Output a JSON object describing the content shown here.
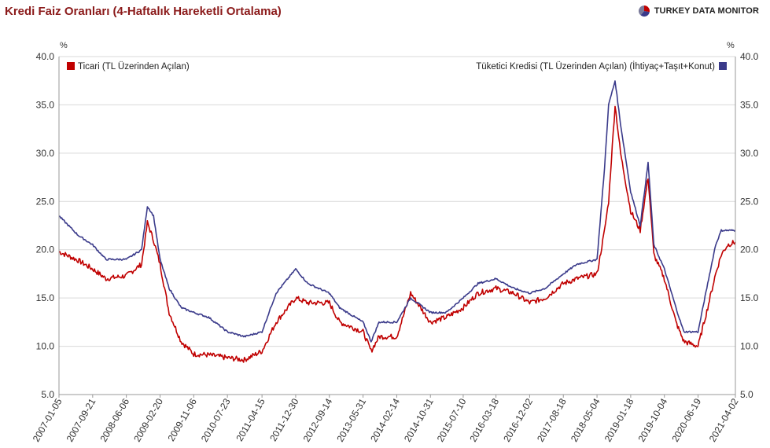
{
  "header": {
    "title": "Kredi Faiz Oranları (4-Haftalık Hareketli Ortalama)",
    "brand": "TURKEY DATA MONITOR"
  },
  "chart_data": {
    "type": "line",
    "title": "Kredi Faiz Oranları (4-Haftalık Hareketli Ortalama)",
    "y_unit_left": "%",
    "y_unit_right": "%",
    "ylim": [
      5,
      40
    ],
    "yticks": [
      "5.0",
      "10.0",
      "15.0",
      "20.0",
      "25.0",
      "30.0",
      "35.0",
      "40.0"
    ],
    "xticks": [
      "2007-01-05",
      "2007-09-21",
      "2008-06-06",
      "2009-02-20",
      "2009-11-06",
      "2010-07-23",
      "2011-04-15",
      "2011-12-30",
      "2012-09-14",
      "2013-05-31",
      "2014-02-14",
      "2014-10-31",
      "2015-07-10",
      "2016-03-18",
      "2016-12-02",
      "2017-08-18",
      "2018-05-04",
      "2019-01-18",
      "2019-10-04",
      "2020-06-19",
      "2021-04-02"
    ],
    "x_range": [
      "2007-01-05",
      "2021-04-02"
    ],
    "grid": "horizontal",
    "legend": [
      "top-left",
      "top-right"
    ],
    "series": [
      {
        "name": "Ticari (TL Üzerinden Açılan)",
        "color": "#c00000",
        "axis": "left",
        "x": [
          "2007-01-05",
          "2007-06-01",
          "2007-09-21",
          "2008-01-01",
          "2008-06-06",
          "2008-10-01",
          "2008-11-15",
          "2009-01-01",
          "2009-02-20",
          "2009-05-01",
          "2009-08-01",
          "2009-11-06",
          "2010-03-01",
          "2010-07-23",
          "2010-12-01",
          "2011-04-15",
          "2011-08-01",
          "2011-12-30",
          "2012-04-01",
          "2012-09-14",
          "2012-12-01",
          "2013-05-31",
          "2013-08-01",
          "2013-10-01",
          "2014-02-14",
          "2014-06-01",
          "2014-10-31",
          "2015-03-01",
          "2015-07-10",
          "2015-11-01",
          "2016-03-18",
          "2016-08-01",
          "2016-12-02",
          "2017-04-01",
          "2017-08-18",
          "2017-12-01",
          "2018-05-04",
          "2018-07-01",
          "2018-08-01",
          "2018-09-20",
          "2018-11-01",
          "2019-01-18",
          "2019-04-01",
          "2019-06-01",
          "2019-07-15",
          "2019-10-04",
          "2020-01-01",
          "2020-03-01",
          "2020-06-19",
          "2020-09-01",
          "2020-11-01",
          "2020-12-15",
          "2021-02-01",
          "2021-04-02"
        ],
        "y": [
          19.8,
          18.9,
          18.0,
          17.0,
          17.3,
          18.5,
          22.8,
          21.0,
          18.5,
          13.5,
          10.5,
          9.2,
          9.1,
          8.8,
          8.6,
          9.5,
          12.5,
          15.0,
          14.5,
          14.5,
          12.5,
          11.5,
          9.5,
          11.0,
          11.0,
          15.5,
          12.5,
          13.0,
          14.0,
          15.5,
          16.0,
          15.5,
          14.5,
          15.0,
          16.5,
          17.0,
          17.5,
          22.0,
          25.0,
          35.0,
          30.0,
          24.0,
          22.0,
          27.5,
          19.5,
          17.0,
          12.5,
          10.5,
          10.0,
          14.0,
          17.5,
          19.5,
          20.5,
          20.8
        ]
      },
      {
        "name": "Tüketici Kredisi (TL Üzerinden Açılan) (İhtiyaç+Taşıt+Konut)",
        "color": "#3a3a8a",
        "axis": "right",
        "x": [
          "2007-01-05",
          "2007-06-01",
          "2007-09-21",
          "2008-01-01",
          "2008-06-06",
          "2008-10-01",
          "2008-11-15",
          "2009-01-01",
          "2009-02-20",
          "2009-05-01",
          "2009-08-01",
          "2009-11-06",
          "2010-03-01",
          "2010-07-23",
          "2010-12-01",
          "2011-04-15",
          "2011-08-01",
          "2011-12-30",
          "2012-04-01",
          "2012-09-14",
          "2012-12-01",
          "2013-05-31",
          "2013-08-01",
          "2013-10-01",
          "2014-02-14",
          "2014-06-01",
          "2014-10-31",
          "2015-03-01",
          "2015-07-10",
          "2015-11-01",
          "2016-03-18",
          "2016-08-01",
          "2016-12-02",
          "2017-04-01",
          "2017-08-18",
          "2017-12-01",
          "2018-05-04",
          "2018-07-01",
          "2018-08-01",
          "2018-09-20",
          "2018-11-01",
          "2019-01-18",
          "2019-04-01",
          "2019-06-01",
          "2019-07-15",
          "2019-10-04",
          "2020-01-01",
          "2020-03-01",
          "2020-06-19",
          "2020-09-01",
          "2020-11-01",
          "2020-12-15",
          "2021-02-01",
          "2021-04-02"
        ],
        "y": [
          23.5,
          21.5,
          20.5,
          19.0,
          19.0,
          20.0,
          24.5,
          23.5,
          19.0,
          16.0,
          14.0,
          13.5,
          13.0,
          11.5,
          11.0,
          11.5,
          15.5,
          18.0,
          16.5,
          15.5,
          14.0,
          12.5,
          10.5,
          12.5,
          12.5,
          15.0,
          13.5,
          13.5,
          15.0,
          16.5,
          17.0,
          16.0,
          15.5,
          16.0,
          17.5,
          18.5,
          19.0,
          28.5,
          35.0,
          37.5,
          33.0,
          26.0,
          22.5,
          29.0,
          20.5,
          18.0,
          14.0,
          11.5,
          11.5,
          16.5,
          20.5,
          22.0,
          22.0,
          22.0
        ]
      }
    ]
  }
}
